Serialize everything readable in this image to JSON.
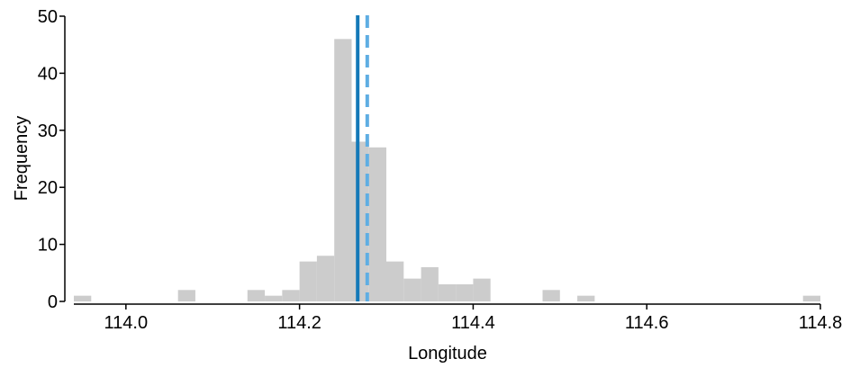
{
  "chart_data": {
    "type": "bar",
    "title": "",
    "xlabel": "Longitude",
    "ylabel": "Frequency",
    "xlim": [
      113.94,
      114.8
    ],
    "ylim": [
      0,
      50
    ],
    "bin_width": 0.02,
    "bins": [
      {
        "x0": 113.94,
        "x1": 113.96,
        "count": 1
      },
      {
        "x0": 114.06,
        "x1": 114.08,
        "count": 2
      },
      {
        "x0": 114.14,
        "x1": 114.16,
        "count": 2
      },
      {
        "x0": 114.16,
        "x1": 114.18,
        "count": 1
      },
      {
        "x0": 114.18,
        "x1": 114.2,
        "count": 2
      },
      {
        "x0": 114.2,
        "x1": 114.22,
        "count": 7
      },
      {
        "x0": 114.22,
        "x1": 114.24,
        "count": 8
      },
      {
        "x0": 114.24,
        "x1": 114.26,
        "count": 46
      },
      {
        "x0": 114.26,
        "x1": 114.28,
        "count": 28
      },
      {
        "x0": 114.28,
        "x1": 114.3,
        "count": 27
      },
      {
        "x0": 114.3,
        "x1": 114.32,
        "count": 7
      },
      {
        "x0": 114.32,
        "x1": 114.34,
        "count": 4
      },
      {
        "x0": 114.34,
        "x1": 114.36,
        "count": 6
      },
      {
        "x0": 114.36,
        "x1": 114.38,
        "count": 3
      },
      {
        "x0": 114.38,
        "x1": 114.4,
        "count": 3
      },
      {
        "x0": 114.4,
        "x1": 114.42,
        "count": 4
      },
      {
        "x0": 114.48,
        "x1": 114.5,
        "count": 2
      },
      {
        "x0": 114.52,
        "x1": 114.54,
        "count": 1
      },
      {
        "x0": 114.78,
        "x1": 114.8,
        "count": 1
      }
    ],
    "reference_lines": [
      {
        "x": 114.267,
        "style": "solid",
        "color": "#1479B8"
      },
      {
        "x": 114.278,
        "style": "dashed",
        "color": "#5FAEE3"
      }
    ],
    "x_ticks": [
      "114.0",
      "114.2",
      "114.4",
      "114.6",
      "114.8"
    ],
    "y_ticks": [
      "0",
      "10",
      "20",
      "30",
      "40",
      "50"
    ],
    "bar_color": "#CCCCCC",
    "grid": false
  }
}
